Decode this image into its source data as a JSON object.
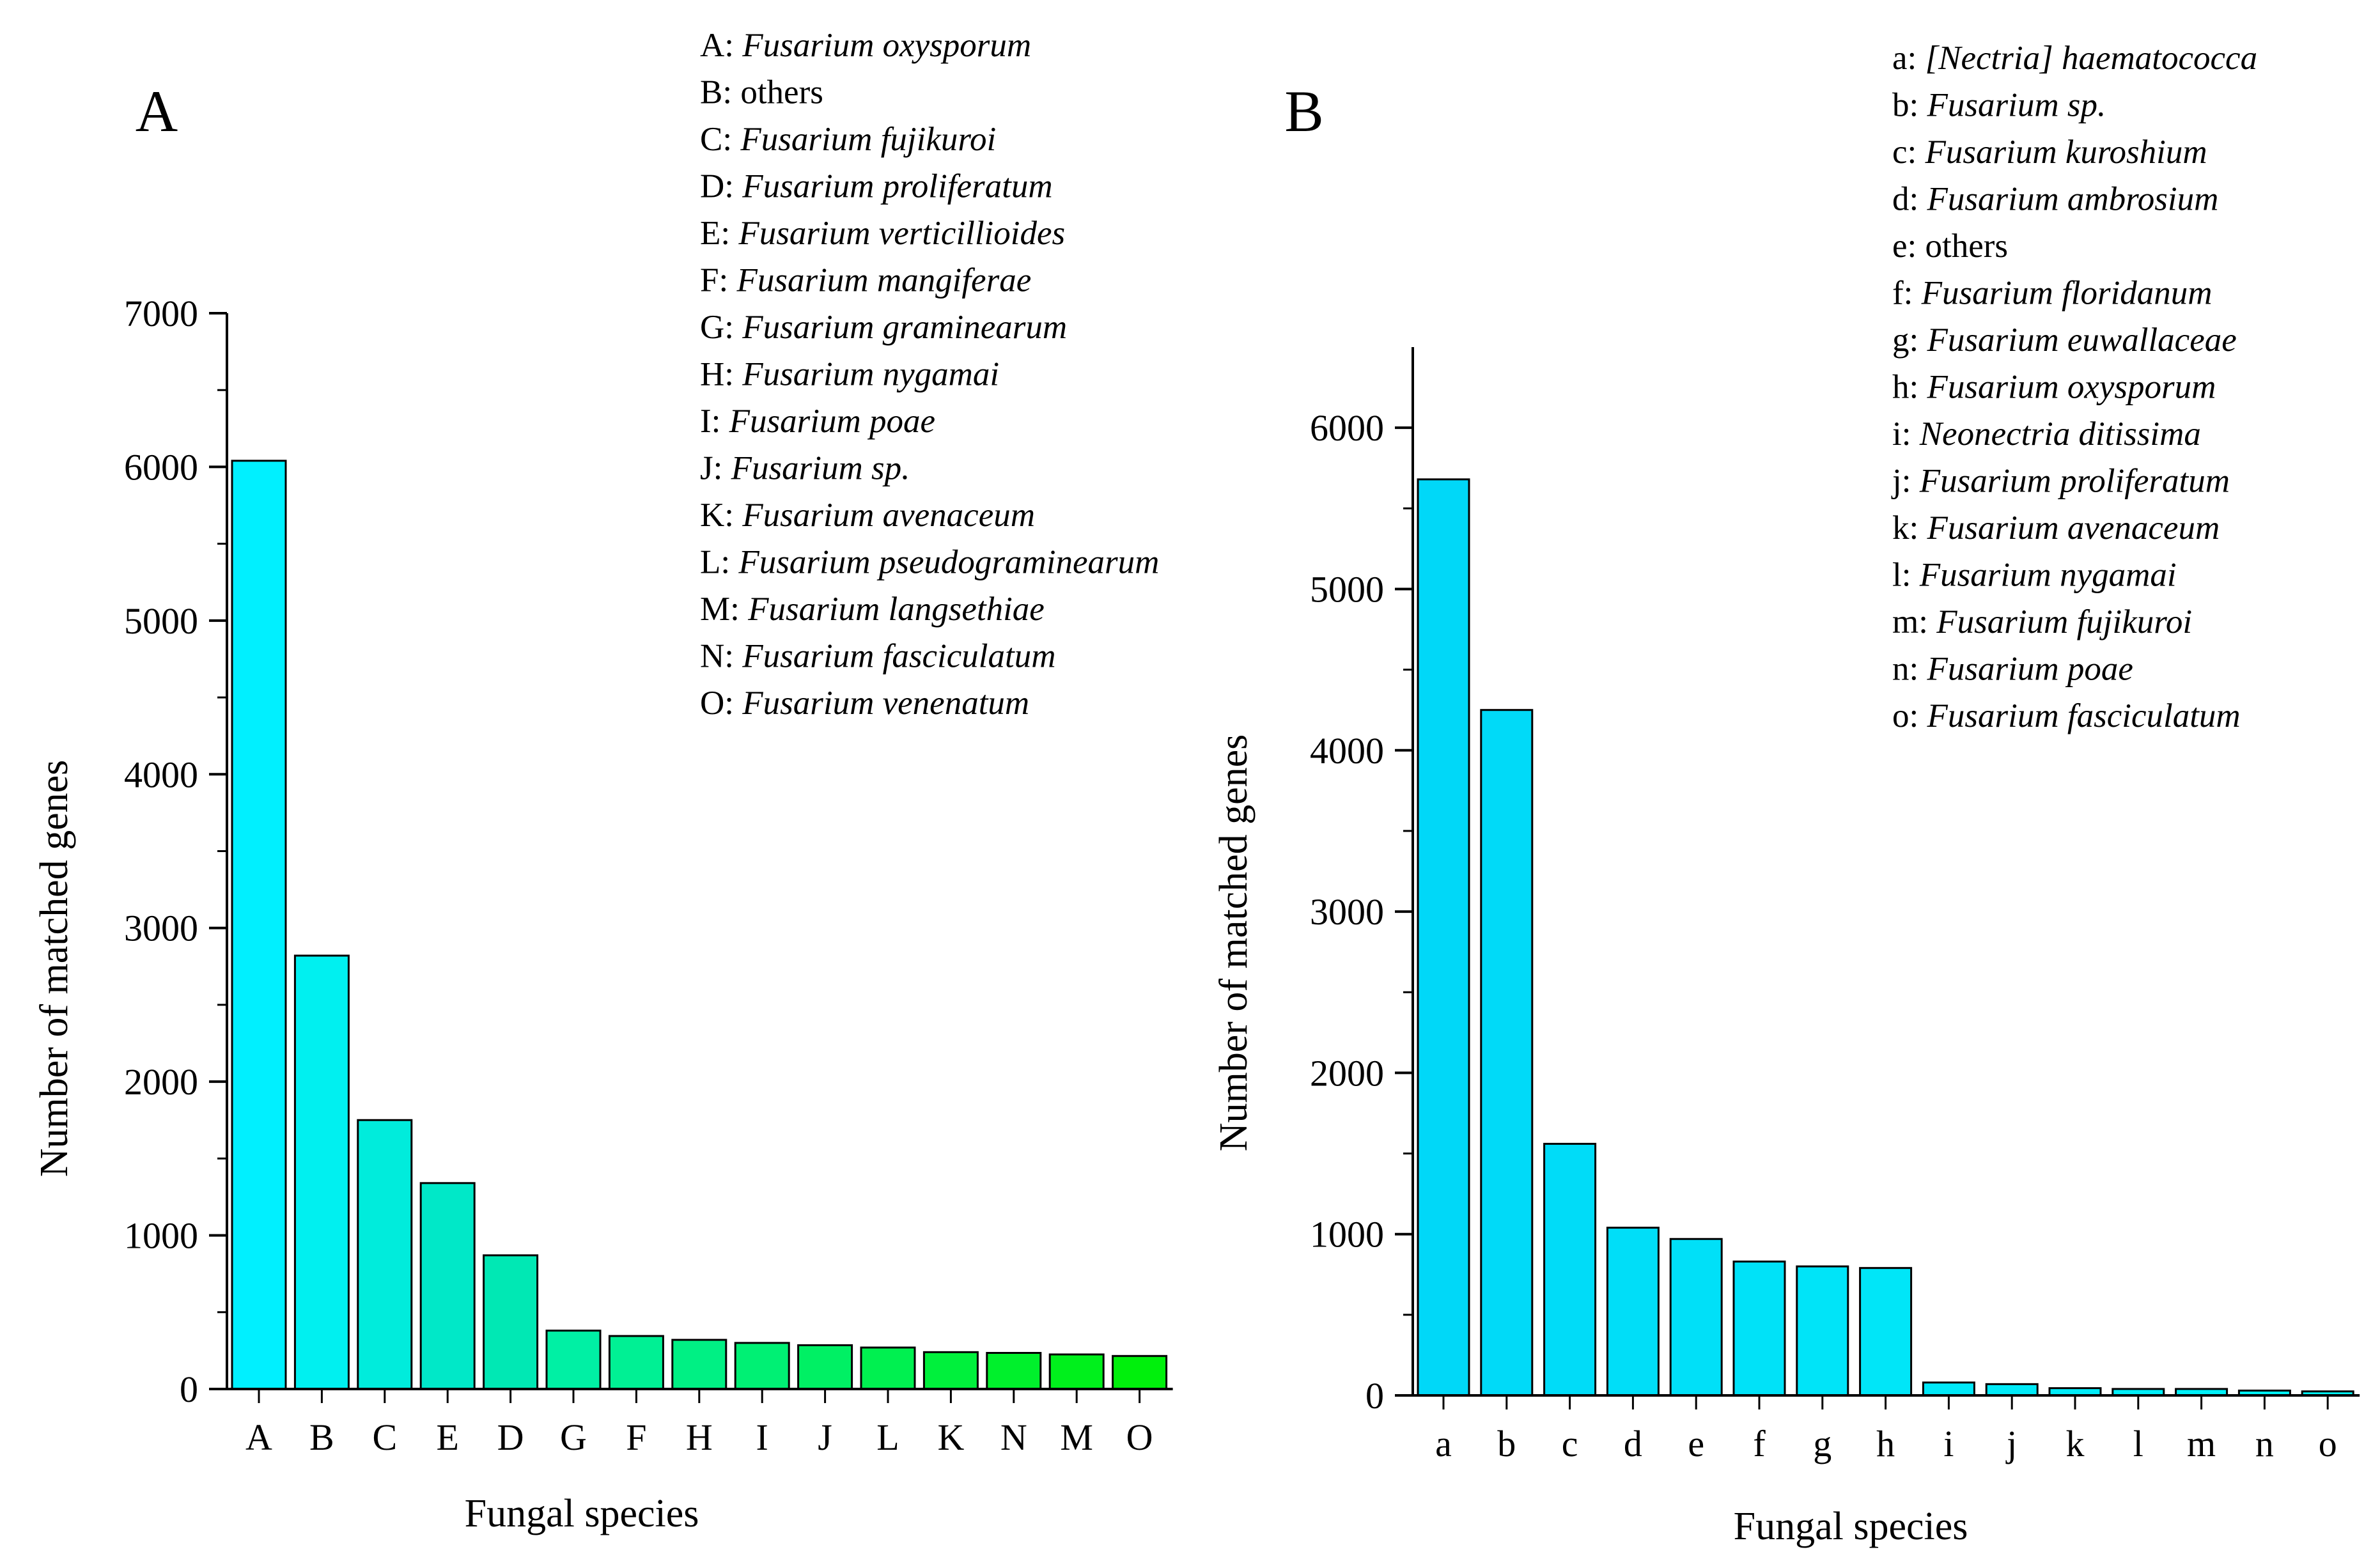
{
  "chart_data": [
    {
      "type": "bar",
      "panel_label": "A",
      "categories": [
        "A",
        "B",
        "C",
        "E",
        "D",
        "G",
        "F",
        "H",
        "I",
        "J",
        "L",
        "K",
        "N",
        "M",
        "O"
      ],
      "values": [
        6040,
        2820,
        1750,
        1340,
        870,
        380,
        345,
        320,
        300,
        285,
        270,
        240,
        235,
        225,
        215
      ],
      "xlabel": "Fungal species",
      "ylabel": "Number of matched genes",
      "ylim": [
        0,
        7000
      ],
      "yticks": [
        0,
        1000,
        2000,
        3000,
        4000,
        5000,
        6000,
        7000
      ],
      "grid": false,
      "bar_colors": [
        "#00f0ff",
        "#00f0f0",
        "#00ecdc",
        "#00e8c8",
        "#00e8b4",
        "#00f0a4",
        "#00f094",
        "#00f084",
        "#00f074",
        "#00f064",
        "#00f050",
        "#00f03c",
        "#00f02c",
        "#00f01c",
        "#00f00c"
      ],
      "legend_position": "top-right",
      "legend": [
        {
          "code": "A",
          "name": "Fusarium oxysporum",
          "italic": true
        },
        {
          "code": "B",
          "name": "others",
          "italic": false
        },
        {
          "code": "C",
          "name": "Fusarium fujikuroi",
          "italic": true
        },
        {
          "code": "D",
          "name": "Fusarium proliferatum",
          "italic": true
        },
        {
          "code": "E",
          "name": "Fusarium verticillioides",
          "italic": true
        },
        {
          "code": "F",
          "name": "Fusarium mangiferae",
          "italic": true
        },
        {
          "code": "G",
          "name": "Fusarium graminearum",
          "italic": true
        },
        {
          "code": "H",
          "name": "Fusarium nygamai",
          "italic": true
        },
        {
          "code": "I",
          "name": "Fusarium poae",
          "italic": true
        },
        {
          "code": "J",
          "name": "Fusarium sp.",
          "italic": true
        },
        {
          "code": "K",
          "name": "Fusarium avenaceum",
          "italic": true
        },
        {
          "code": "L",
          "name": "Fusarium pseudograminearum",
          "italic": true
        },
        {
          "code": "M",
          "name": "Fusarium langsethiae",
          "italic": true
        },
        {
          "code": "N",
          "name": "Fusarium fasciculatum",
          "italic": true
        },
        {
          "code": "O",
          "name": "Fusarium venenatum",
          "italic": true
        }
      ]
    },
    {
      "type": "bar",
      "panel_label": "B",
      "categories": [
        "a",
        "b",
        "c",
        "d",
        "e",
        "f",
        "g",
        "h",
        "i",
        "j",
        "k",
        "l",
        "m",
        "n",
        "o"
      ],
      "values": [
        5680,
        4250,
        1560,
        1040,
        970,
        830,
        800,
        790,
        80,
        70,
        45,
        40,
        40,
        30,
        25
      ],
      "xlabel": "Fungal species",
      "ylabel": "Number of matched genes",
      "ylim": [
        0,
        6500
      ],
      "yticks": [
        0,
        1000,
        2000,
        3000,
        4000,
        5000,
        6000
      ],
      "grid": false,
      "bar_colors": [
        "#00d8f8",
        "#00daf8",
        "#00dcf8",
        "#00def8",
        "#00e0f8",
        "#00e2f8",
        "#00e4f8",
        "#00e6f8",
        "#00e8f8",
        "#00eaf8",
        "#00ecf8",
        "#00eef8",
        "#00f0f8",
        "#00f2f8",
        "#00f4f8"
      ],
      "legend_position": "top-right",
      "legend": [
        {
          "code": "a",
          "name": "[Nectria] haematococca",
          "italic": true
        },
        {
          "code": "b",
          "name": "Fusarium sp.",
          "italic": true
        },
        {
          "code": "c",
          "name": "Fusarium kuroshium",
          "italic": true
        },
        {
          "code": "d",
          "name": "Fusarium ambrosium",
          "italic": true
        },
        {
          "code": "e",
          "name": "others",
          "italic": false
        },
        {
          "code": "f",
          "name": "Fusarium floridanum",
          "italic": true
        },
        {
          "code": "g",
          "name": "Fusarium euwallaceae",
          "italic": true
        },
        {
          "code": "h",
          "name": "Fusarium oxysporum",
          "italic": true
        },
        {
          "code": "i",
          "name": "Neonectria ditissima",
          "italic": true
        },
        {
          "code": "j",
          "name": "Fusarium proliferatum",
          "italic": true
        },
        {
          "code": "k",
          "name": "Fusarium avenaceum",
          "italic": true
        },
        {
          "code": "l",
          "name": "Fusarium nygamai",
          "italic": true
        },
        {
          "code": "m",
          "name": "Fusarium fujikuroi",
          "italic": true
        },
        {
          "code": "n",
          "name": "Fusarium poae",
          "italic": true
        },
        {
          "code": "o",
          "name": "Fusarium fasciculatum",
          "italic": true
        }
      ]
    }
  ]
}
